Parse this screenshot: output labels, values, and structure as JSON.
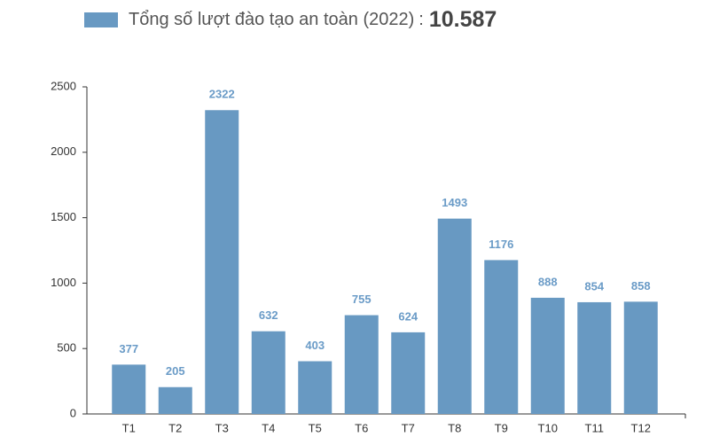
{
  "chart_data": {
    "type": "bar",
    "categories": [
      "T1",
      "T2",
      "T3",
      "T4",
      "T5",
      "T6",
      "T7",
      "T8",
      "T9",
      "T10",
      "T11",
      "T12"
    ],
    "series": [
      {
        "name": "Tổng số lượt đào tạo an toàn (2022)",
        "color": "#6899c2",
        "values": [
          377,
          205,
          2322,
          632,
          403,
          755,
          624,
          1493,
          1176,
          888,
          854,
          858
        ]
      }
    ],
    "total_separator": ":",
    "total": {
      "value": 10587,
      "label": "10.587"
    },
    "ylim": [
      0,
      2500
    ],
    "yticks": [
      0,
      500,
      1000,
      1500,
      2000,
      2500
    ],
    "grid": false
  }
}
